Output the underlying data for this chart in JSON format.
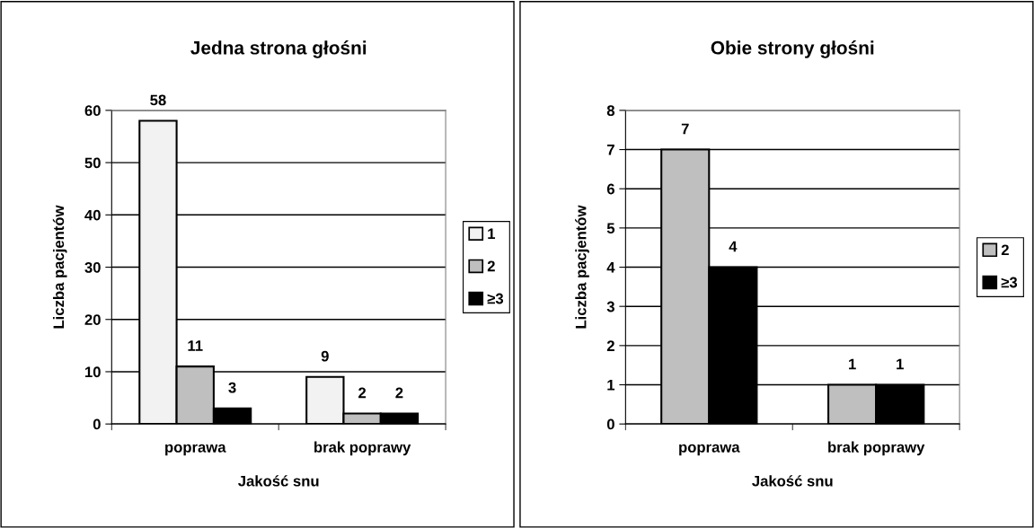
{
  "chart_data": [
    {
      "type": "bar",
      "title": "Jedna strona głośni",
      "xlabel": "Jakość snu",
      "ylabel": "Liczba pacjentów",
      "categories": [
        "poprawa",
        "brak poprawy"
      ],
      "series": [
        {
          "name": "1",
          "color": "#f2f2f2",
          "values": [
            58,
            9
          ]
        },
        {
          "name": "2",
          "color": "#bfbfbf",
          "values": [
            11,
            2
          ]
        },
        {
          "name": "≥3",
          "color": "#000000",
          "values": [
            3,
            2
          ]
        }
      ],
      "ylim": [
        0,
        60
      ],
      "yticks": [
        0,
        10,
        20,
        30,
        40,
        50,
        60
      ],
      "grid": "y",
      "legend": "right",
      "data_labels": true
    },
    {
      "type": "bar",
      "title": "Obie strony głośni",
      "xlabel": "Jakość snu",
      "ylabel": "Liczba pacjentów",
      "categories": [
        "poprawa",
        "brak poprawy"
      ],
      "series": [
        {
          "name": "2",
          "color": "#bfbfbf",
          "values": [
            7,
            1
          ]
        },
        {
          "name": "≥3",
          "color": "#000000",
          "values": [
            4,
            1
          ]
        }
      ],
      "ylim": [
        0,
        8
      ],
      "yticks": [
        0,
        1,
        2,
        3,
        4,
        5,
        6,
        7,
        8
      ],
      "grid": "y",
      "legend": "right",
      "data_labels": true
    }
  ]
}
